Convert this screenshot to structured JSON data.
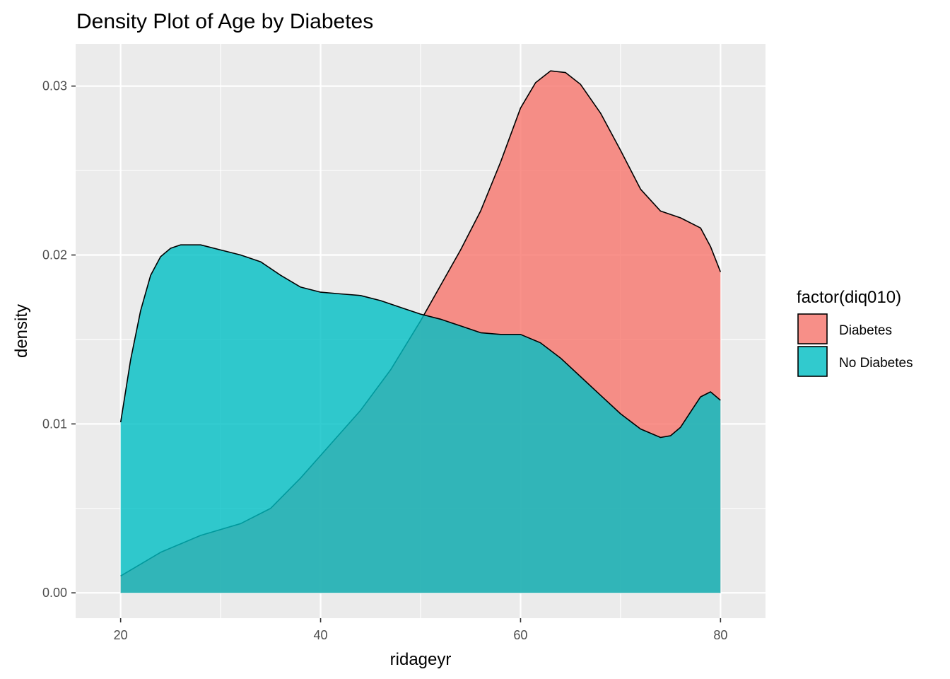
{
  "chart_data": {
    "type": "area",
    "subtype": "density",
    "title": "Density Plot of Age by Diabetes",
    "xlabel": "ridageyr",
    "ylabel": "density",
    "xlim": [
      15.5,
      84.5
    ],
    "ylim": [
      -0.0015,
      0.0325
    ],
    "x_ticks": [
      20,
      40,
      60,
      80
    ],
    "x_tick_labels": [
      "20",
      "40",
      "60",
      "80"
    ],
    "x_minor_ticks": [
      30,
      50,
      70
    ],
    "y_ticks": [
      0,
      0.01,
      0.02,
      0.03
    ],
    "y_tick_labels": [
      "0.00",
      "0.01",
      "0.02",
      "0.03"
    ],
    "y_minor_ticks": [
      0.005,
      0.015,
      0.025
    ],
    "grid": true,
    "panel_background": "#ebebeb",
    "legend": {
      "title": "factor(diq010)",
      "position": "right"
    },
    "series": [
      {
        "name": "Diabetes",
        "color": "#f8766d",
        "x": [
          20,
          24,
          28,
          32,
          35,
          38,
          41,
          44,
          47,
          50,
          52,
          54,
          56,
          58,
          60,
          61.5,
          63,
          64.5,
          66,
          68,
          70,
          72,
          74,
          76,
          78,
          79,
          80
        ],
        "y": [
          0.001,
          0.0024,
          0.0034,
          0.0041,
          0.005,
          0.0068,
          0.0088,
          0.0108,
          0.0132,
          0.0161,
          0.0182,
          0.0203,
          0.0226,
          0.0255,
          0.0287,
          0.0302,
          0.0309,
          0.0308,
          0.0301,
          0.0284,
          0.0262,
          0.0239,
          0.0226,
          0.0222,
          0.0216,
          0.0205,
          0.019
        ]
      },
      {
        "name": "No Diabetes",
        "color": "#00bfc4",
        "x": [
          20,
          21,
          22,
          23,
          24,
          25,
          26,
          28,
          30,
          32,
          34,
          36,
          38,
          40,
          42,
          44,
          46,
          48,
          50,
          52,
          54,
          56,
          58,
          60,
          62,
          64,
          66,
          68,
          70,
          72,
          74,
          75,
          76,
          77,
          78,
          79,
          80
        ],
        "y": [
          0.0101,
          0.0138,
          0.0167,
          0.0188,
          0.0199,
          0.0204,
          0.0206,
          0.0206,
          0.0203,
          0.02,
          0.0196,
          0.0188,
          0.0181,
          0.0178,
          0.0177,
          0.0176,
          0.0173,
          0.0169,
          0.0165,
          0.0162,
          0.0158,
          0.0154,
          0.0153,
          0.0153,
          0.0148,
          0.0139,
          0.0128,
          0.0117,
          0.0106,
          0.0097,
          0.0092,
          0.0093,
          0.0098,
          0.0107,
          0.0116,
          0.0119,
          0.0114
        ]
      }
    ]
  }
}
